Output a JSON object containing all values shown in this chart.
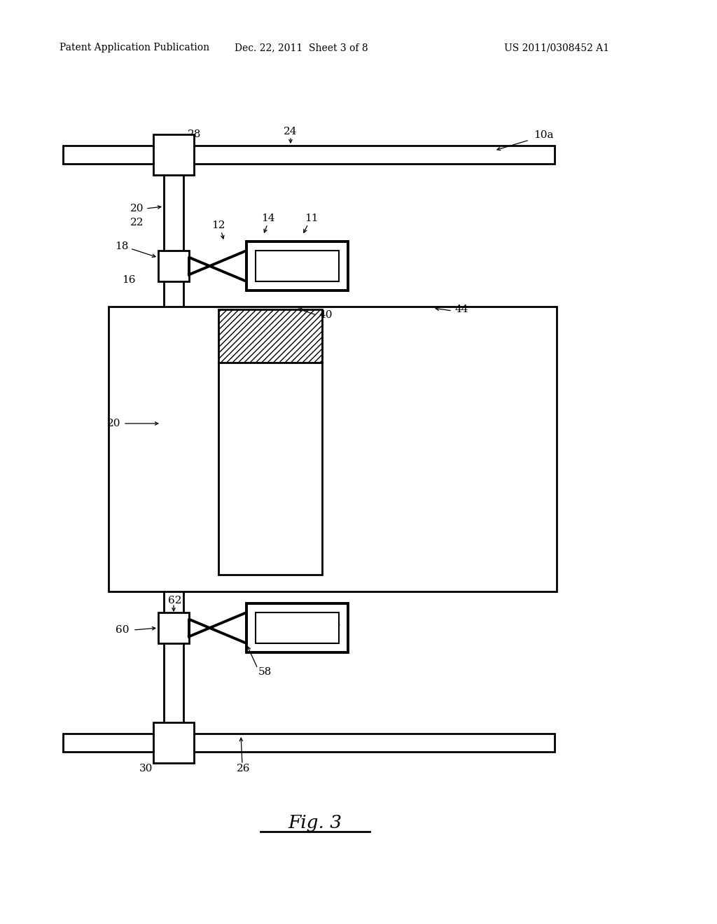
{
  "bg_color": "#ffffff",
  "line_color": "#000000",
  "header_left": "Patent Application Publication",
  "header_mid": "Dec. 22, 2011  Sheet 3 of 8",
  "header_right": "US 2011/0308452 A1",
  "fig_label": "Fig. 3"
}
